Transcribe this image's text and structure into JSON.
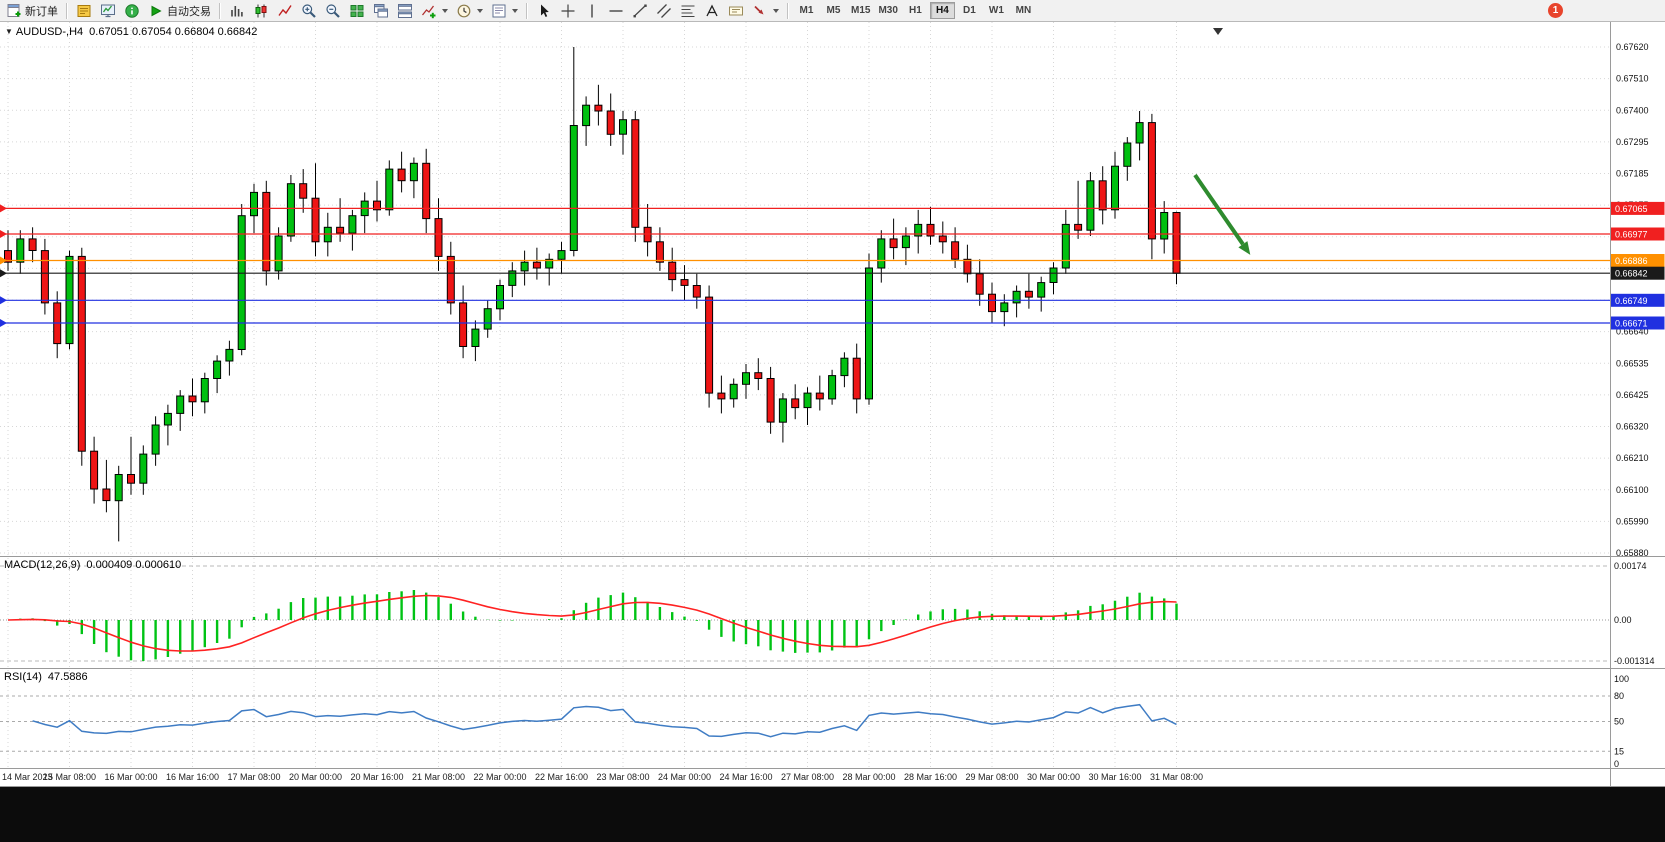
{
  "app": {
    "toolbar": {
      "new_order_label": "新订单",
      "autotrading_label": "自动交易",
      "system_icons": [
        {
          "name": "metaeditor"
        },
        {
          "name": "market-watch"
        },
        {
          "name": "help"
        }
      ],
      "chart_icons": [
        {
          "name": "bar-chart"
        },
        {
          "name": "candle-chart"
        },
        {
          "name": "line-chart"
        },
        {
          "name": "zoom-in"
        },
        {
          "name": "zoom-out"
        },
        {
          "name": "tile-windows"
        },
        {
          "name": "cascade-windows"
        },
        {
          "name": "arrange-windows"
        },
        {
          "name": "add-indicator",
          "dropdown": true
        },
        {
          "name": "periods",
          "dropdown": true
        },
        {
          "name": "templates",
          "dropdown": true
        }
      ],
      "draw_icons": [
        {
          "name": "cursor"
        },
        {
          "name": "crosshair"
        },
        {
          "name": "vertical-line"
        },
        {
          "name": "horizontal-line"
        },
        {
          "name": "trendline"
        },
        {
          "name": "channel"
        },
        {
          "name": "fibonacci"
        },
        {
          "name": "text"
        },
        {
          "name": "text-label"
        },
        {
          "name": "arrow-tools",
          "dropdown": true
        }
      ],
      "timeframes": [
        "M1",
        "M5",
        "M15",
        "M30",
        "H1",
        "H4",
        "D1",
        "W1",
        "MN"
      ],
      "active_timeframe": "H4",
      "notification_count": "1"
    },
    "chart_header": {
      "marker_glyph": "▼",
      "symbol_period": "AUDUSD-,H4",
      "ohlc": "0.67051 0.67054 0.66804 0.66842"
    }
  },
  "chart_data": [
    {
      "type": "candlestick",
      "symbol": "AUDUSD-",
      "timeframe": "H4",
      "current": {
        "open": 0.67051,
        "high": 0.67054,
        "low": 0.66804,
        "close": 0.66842
      },
      "y_axis_labels": [
        "0.67620",
        "0.67510",
        "0.67400",
        "0.67295",
        "0.67185",
        "0.67075",
        "0.66970",
        "0.66860",
        "0.66750",
        "0.66640",
        "0.66535",
        "0.66425",
        "0.66320",
        "0.66210",
        "0.66100",
        "0.65990",
        "0.65880"
      ],
      "x_labels": [
        "14 Mar 2023",
        "15 Mar 08:00",
        "16 Mar 00:00",
        "16 Mar 16:00",
        "17 Mar 08:00",
        "20 Mar 00:00",
        "20 Mar 16:00",
        "21 Mar 08:00",
        "22 Mar 00:00",
        "22 Mar 16:00",
        "23 Mar 08:00",
        "24 Mar 00:00",
        "24 Mar 16:00",
        "27 Mar 08:00",
        "28 Mar 00:00",
        "28 Mar 16:00",
        "29 Mar 08:00",
        "30 Mar 00:00",
        "30 Mar 16:00",
        "31 Mar 08:00"
      ],
      "x_label_step": 5,
      "colors": {
        "up": "#00c010",
        "down": "#ee1515",
        "outline": "#000000",
        "grid": "#d7d7d7",
        "background": "#ffffff"
      },
      "hlines": [
        {
          "price": 0.67065,
          "color": "#f02020",
          "label": "0.67065"
        },
        {
          "price": 0.66977,
          "color": "#f02020",
          "label": "0.66977"
        },
        {
          "price": 0.66886,
          "color": "#ff9000",
          "label": "0.66886"
        },
        {
          "price": 0.66842,
          "color": "#1a1a1a",
          "label": "0.66842",
          "is_current_price": true
        },
        {
          "price": 0.66749,
          "color": "#2030e0",
          "label": "0.66749"
        },
        {
          "price": 0.66671,
          "color": "#2030e0",
          "label": "0.66671"
        }
      ],
      "annotation_arrow": {
        "color": "#2e8b2e",
        "from": {
          "candle": 96.5,
          "price": 0.6718
        },
        "to": {
          "candle": 101,
          "price": 0.66905
        }
      },
      "candles": [
        [
          0.6692,
          0.6699,
          0.6685,
          0.6688
        ],
        [
          0.6688,
          0.6699,
          0.6684,
          0.6696
        ],
        [
          0.6696,
          0.67,
          0.6688,
          0.6692
        ],
        [
          0.6692,
          0.6696,
          0.667,
          0.6674
        ],
        [
          0.6674,
          0.6678,
          0.6655,
          0.666
        ],
        [
          0.666,
          0.6692,
          0.6658,
          0.669
        ],
        [
          0.669,
          0.6693,
          0.6618,
          0.6623
        ],
        [
          0.6623,
          0.6628,
          0.6605,
          0.661
        ],
        [
          0.661,
          0.662,
          0.6602,
          0.6606
        ],
        [
          0.6606,
          0.6618,
          0.6592,
          0.6615
        ],
        [
          0.6615,
          0.6628,
          0.6608,
          0.6612
        ],
        [
          0.6612,
          0.6625,
          0.6608,
          0.6622
        ],
        [
          0.6622,
          0.6635,
          0.6618,
          0.6632
        ],
        [
          0.6632,
          0.6639,
          0.6625,
          0.6636
        ],
        [
          0.6636,
          0.6644,
          0.663,
          0.6642
        ],
        [
          0.6642,
          0.6648,
          0.6635,
          0.664
        ],
        [
          0.664,
          0.665,
          0.6636,
          0.6648
        ],
        [
          0.6648,
          0.6656,
          0.6643,
          0.6654
        ],
        [
          0.6654,
          0.6661,
          0.6649,
          0.6658
        ],
        [
          0.6658,
          0.6708,
          0.6656,
          0.6704
        ],
        [
          0.6704,
          0.6715,
          0.6698,
          0.6712
        ],
        [
          0.6712,
          0.6716,
          0.668,
          0.6685
        ],
        [
          0.6685,
          0.67,
          0.6682,
          0.6697
        ],
        [
          0.6697,
          0.6718,
          0.6695,
          0.6715
        ],
        [
          0.6715,
          0.672,
          0.6705,
          0.671
        ],
        [
          0.671,
          0.6722,
          0.669,
          0.6695
        ],
        [
          0.6695,
          0.6705,
          0.669,
          0.67
        ],
        [
          0.67,
          0.671,
          0.6695,
          0.6698
        ],
        [
          0.6698,
          0.6706,
          0.6692,
          0.6704
        ],
        [
          0.6704,
          0.6712,
          0.6698,
          0.6709
        ],
        [
          0.6709,
          0.6716,
          0.6702,
          0.6706
        ],
        [
          0.6706,
          0.6723,
          0.6704,
          0.672
        ],
        [
          0.672,
          0.6726,
          0.6712,
          0.6716
        ],
        [
          0.6716,
          0.6724,
          0.671,
          0.6722
        ],
        [
          0.6722,
          0.6727,
          0.6698,
          0.6703
        ],
        [
          0.6703,
          0.671,
          0.6685,
          0.669
        ],
        [
          0.669,
          0.6695,
          0.667,
          0.6674
        ],
        [
          0.6674,
          0.668,
          0.6655,
          0.6659
        ],
        [
          0.6659,
          0.6668,
          0.6654,
          0.6665
        ],
        [
          0.6665,
          0.6675,
          0.6662,
          0.6672
        ],
        [
          0.6672,
          0.6682,
          0.6668,
          0.668
        ],
        [
          0.668,
          0.6688,
          0.6676,
          0.6685
        ],
        [
          0.6685,
          0.6692,
          0.668,
          0.6688
        ],
        [
          0.6688,
          0.6693,
          0.6682,
          0.6686
        ],
        [
          0.6686,
          0.6691,
          0.668,
          0.6689
        ],
        [
          0.6689,
          0.6695,
          0.6684,
          0.6692
        ],
        [
          0.6692,
          0.6762,
          0.669,
          0.6735
        ],
        [
          0.6735,
          0.6745,
          0.6728,
          0.6742
        ],
        [
          0.6742,
          0.6749,
          0.6735,
          0.674
        ],
        [
          0.674,
          0.6746,
          0.6728,
          0.6732
        ],
        [
          0.6732,
          0.674,
          0.6725,
          0.6737
        ],
        [
          0.6737,
          0.674,
          0.6695,
          0.67
        ],
        [
          0.67,
          0.6708,
          0.669,
          0.6695
        ],
        [
          0.6695,
          0.67,
          0.6685,
          0.6688
        ],
        [
          0.6688,
          0.6693,
          0.6678,
          0.6682
        ],
        [
          0.6682,
          0.6687,
          0.6675,
          0.668
        ],
        [
          0.668,
          0.6684,
          0.6672,
          0.6676
        ],
        [
          0.6676,
          0.668,
          0.6638,
          0.6643
        ],
        [
          0.6643,
          0.6649,
          0.6636,
          0.6641
        ],
        [
          0.6641,
          0.6648,
          0.6638,
          0.6646
        ],
        [
          0.6646,
          0.6653,
          0.6641,
          0.665
        ],
        [
          0.665,
          0.6655,
          0.6644,
          0.6648
        ],
        [
          0.6648,
          0.6652,
          0.6629,
          0.6633
        ],
        [
          0.6633,
          0.6643,
          0.6626,
          0.6641
        ],
        [
          0.6641,
          0.6646,
          0.6634,
          0.6638
        ],
        [
          0.6638,
          0.6645,
          0.6632,
          0.6643
        ],
        [
          0.6643,
          0.6649,
          0.6637,
          0.6641
        ],
        [
          0.6641,
          0.6651,
          0.6639,
          0.6649
        ],
        [
          0.6649,
          0.6657,
          0.6645,
          0.6655
        ],
        [
          0.6655,
          0.666,
          0.6636,
          0.6641
        ],
        [
          0.6641,
          0.6691,
          0.6639,
          0.6686
        ],
        [
          0.6686,
          0.6699,
          0.6681,
          0.6696
        ],
        [
          0.6696,
          0.6703,
          0.6689,
          0.6693
        ],
        [
          0.6693,
          0.67,
          0.6687,
          0.6697
        ],
        [
          0.6697,
          0.6706,
          0.6691,
          0.6701
        ],
        [
          0.6701,
          0.6707,
          0.6694,
          0.6697
        ],
        [
          0.6697,
          0.6702,
          0.6691,
          0.6695
        ],
        [
          0.6695,
          0.67,
          0.6686,
          0.6689
        ],
        [
          0.6689,
          0.6694,
          0.6681,
          0.6684
        ],
        [
          0.6684,
          0.6689,
          0.6673,
          0.6677
        ],
        [
          0.6677,
          0.6681,
          0.6667,
          0.6671
        ],
        [
          0.6671,
          0.6677,
          0.6666,
          0.6674
        ],
        [
          0.6674,
          0.668,
          0.6669,
          0.6678
        ],
        [
          0.6678,
          0.6684,
          0.6672,
          0.6676
        ],
        [
          0.6676,
          0.6683,
          0.6671,
          0.6681
        ],
        [
          0.6681,
          0.6688,
          0.6677,
          0.6686
        ],
        [
          0.6686,
          0.6706,
          0.6684,
          0.6701
        ],
        [
          0.6701,
          0.6716,
          0.6696,
          0.6699
        ],
        [
          0.6699,
          0.6719,
          0.6697,
          0.6716
        ],
        [
          0.6716,
          0.6721,
          0.6701,
          0.6706
        ],
        [
          0.6706,
          0.6726,
          0.6703,
          0.6721
        ],
        [
          0.6721,
          0.6731,
          0.6716,
          0.6729
        ],
        [
          0.6729,
          0.674,
          0.6723,
          0.6736
        ],
        [
          0.6736,
          0.6739,
          0.6689,
          0.6696
        ],
        [
          0.6696,
          0.6709,
          0.6691,
          0.67051
        ],
        [
          0.67051,
          0.67054,
          0.66804,
          0.66842
        ]
      ]
    },
    {
      "type": "macd",
      "label": "MACD(12,26,9)",
      "values_text": "0.000409 0.000610",
      "fast": 12,
      "slow": 26,
      "signal": 9,
      "y_axis_labels": [
        "0.00174",
        "0.00",
        "-0.001314"
      ],
      "colors": {
        "histogram": "#00c314",
        "signal": "#ff2222"
      }
    },
    {
      "type": "rsi",
      "label": "RSI(14)",
      "value_text": "47.5886",
      "period": 14,
      "levels": [
        80,
        50,
        15
      ],
      "y_axis_labels": [
        "100",
        "80",
        "50",
        "15",
        "0"
      ],
      "colors": {
        "line": "#3f7cc4"
      }
    }
  ]
}
